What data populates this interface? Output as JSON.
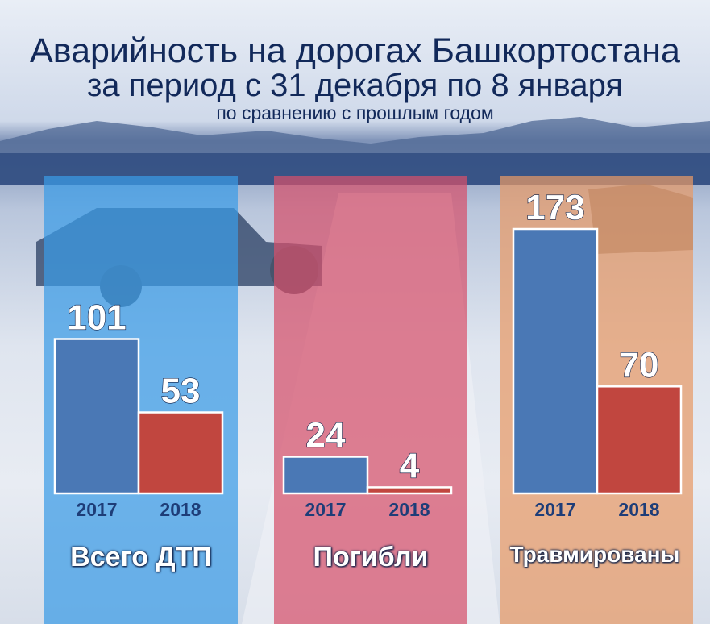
{
  "header": {
    "title_line1": "Аварийность на дорогах Башкортостана",
    "title_line2": "за период с 31 декабря по 8 января",
    "subtitle": "по сравнению с прошлым годом"
  },
  "colors": {
    "series_2017": "#4a78b5",
    "series_2018": "#c1463f",
    "panel_total": "#3a9be6",
    "panel_deaths": "#d6506b",
    "panel_injured": "#e79a67"
  },
  "chart_data": [
    {
      "type": "bar",
      "title": "Всего ДТП",
      "categories": [
        "2017",
        "2018"
      ],
      "values": [
        101,
        53
      ],
      "ylim": [
        0,
        173
      ]
    },
    {
      "type": "bar",
      "title": "Погибли",
      "categories": [
        "2017",
        "2018"
      ],
      "values": [
        24,
        4
      ],
      "ylim": [
        0,
        173
      ]
    },
    {
      "type": "bar",
      "title": "Травмированы",
      "categories": [
        "2017",
        "2018"
      ],
      "values": [
        173,
        70
      ],
      "ylim": [
        0,
        173
      ]
    }
  ]
}
